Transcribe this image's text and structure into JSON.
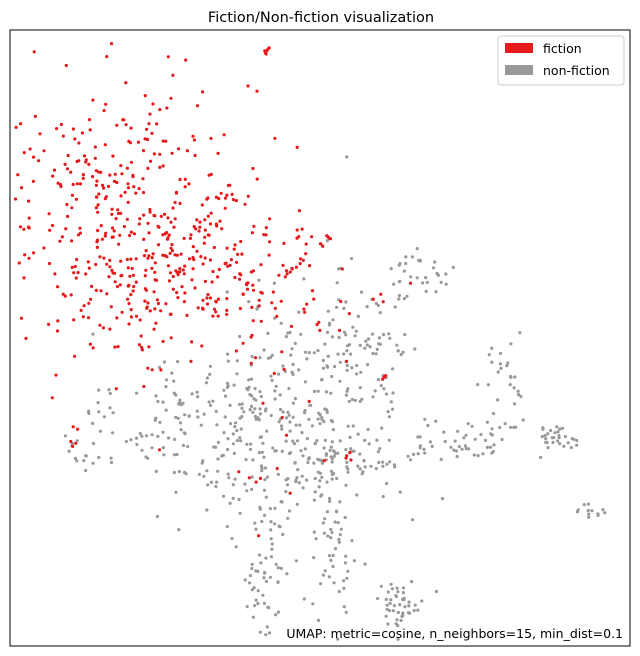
{
  "chart_data": {
    "type": "scatter",
    "title": "Fiction/Non-fiction visualization",
    "annotation": "UMAP: metric=cosine, n_neighbors=15, min_dist=0.1",
    "axes_visible": false,
    "grid": false,
    "legend_position": "top-right",
    "xlim": [
      0,
      100
    ],
    "ylim": [
      0,
      100
    ],
    "series": [
      {
        "name": "fiction",
        "color": "#e41a1c",
        "clusters": [
          {
            "cx": 18,
            "cy": 72,
            "sx": 11,
            "sy": 10,
            "n": 300
          },
          {
            "cx": 30,
            "cy": 63,
            "sx": 9,
            "sy": 6,
            "n": 130
          },
          {
            "cx": 20,
            "cy": 58,
            "sx": 7,
            "sy": 6,
            "n": 60
          },
          {
            "cx": 40,
            "cy": 57,
            "sx": 10,
            "sy": 6,
            "n": 45
          },
          {
            "cx": 30,
            "cy": 50,
            "sx": 12,
            "sy": 6,
            "n": 25
          }
        ],
        "points": [
          [
            41.2,
            96.3
          ],
          [
            41.4,
            96.6
          ],
          [
            41.6,
            96.9
          ],
          [
            41.8,
            97.1
          ],
          [
            41.3,
            96.1
          ],
          [
            41.1,
            96.6
          ],
          [
            51.3,
            66.4
          ],
          [
            51.5,
            66.2
          ],
          [
            51.1,
            66.6
          ],
          [
            51.7,
            66.1
          ],
          [
            53.6,
            61.2
          ],
          [
            47.3,
            62.6
          ],
          [
            46.8,
            62.1
          ],
          [
            46.2,
            61.5
          ],
          [
            45.5,
            61.2
          ],
          [
            45.2,
            60.7
          ],
          [
            44.7,
            60.4
          ],
          [
            64.6,
            58.9
          ],
          [
            59.8,
            57.1
          ],
          [
            58.6,
            56.3
          ],
          [
            60.2,
            55.9
          ],
          [
            39.6,
            46.8
          ],
          [
            38.9,
            45.9
          ],
          [
            44.2,
            44.9
          ],
          [
            60.3,
            43.6
          ],
          [
            60.1,
            43.3
          ],
          [
            60.6,
            43.9
          ],
          [
            10.2,
            35.6
          ],
          [
            10.9,
            35.2
          ],
          [
            9.8,
            33.2
          ],
          [
            10.6,
            32.9
          ],
          [
            10.1,
            32.4
          ],
          [
            45.2,
            24.8
          ],
          [
            39.7,
            26.6
          ],
          [
            40.4,
            27.2
          ],
          [
            38.6,
            27.3
          ],
          [
            54.3,
            30.9
          ],
          [
            54.2,
            30.5
          ],
          [
            55.0,
            30.2
          ],
          [
            54.8,
            31.4
          ],
          [
            40.1,
            17.9
          ],
          [
            36.9,
            28.3
          ],
          [
            44.6,
            34.2
          ],
          [
            43.1,
            28.8
          ],
          [
            50.7,
            30.1
          ],
          [
            40.8,
            39.4
          ],
          [
            43.9,
            37.1
          ]
        ]
      },
      {
        "name": "non-fiction",
        "color": "#999999",
        "clusters": [
          {
            "cx": 40,
            "cy": 37,
            "sx": 11,
            "sy": 7,
            "n": 260
          },
          {
            "cx": 50,
            "cy": 30,
            "sx": 9,
            "sy": 6,
            "n": 120
          },
          {
            "cx": 53,
            "cy": 48,
            "sx": 7,
            "sy": 6,
            "n": 70
          },
          {
            "cx": 41,
            "cy": 13,
            "sx": 2.2,
            "sy": 6,
            "n": 55
          },
          {
            "cx": 52,
            "cy": 14,
            "sx": 2,
            "sy": 6,
            "n": 45
          },
          {
            "cx": 63,
            "cy": 7,
            "sx": 2,
            "sy": 1.8,
            "n": 45
          },
          {
            "cx": 88,
            "cy": 34,
            "sx": 1.6,
            "sy": 0.9,
            "n": 30
          },
          {
            "cx": 80,
            "cy": 42,
            "sx": 1.6,
            "sy": 3.5,
            "n": 22
          },
          {
            "cx": 74,
            "cy": 33,
            "sx": 5,
            "sy": 2,
            "n": 40
          },
          {
            "cx": 66,
            "cy": 60,
            "sx": 2.5,
            "sy": 2,
            "n": 30
          },
          {
            "cx": 58,
            "cy": 50,
            "sx": 2,
            "sy": 2,
            "n": 20
          },
          {
            "cx": 94,
            "cy": 22,
            "sx": 1.2,
            "sy": 0.6,
            "n": 12
          },
          {
            "cx": 20,
            "cy": 35,
            "sx": 6,
            "sy": 4,
            "n": 25
          },
          {
            "cx": 11,
            "cy": 31,
            "sx": 1.0,
            "sy": 1.3,
            "n": 8
          }
        ],
        "points": [
          [
            51.2,
            65.8
          ],
          [
            50.3,
            65.1
          ],
          [
            53.4,
            61.3
          ],
          [
            55.1,
            62.9
          ],
          [
            66.2,
            62.5
          ],
          [
            68.3,
            61.4
          ],
          [
            69.1,
            60.2
          ],
          [
            58.4,
            56.3
          ],
          [
            57.6,
            55.1
          ],
          [
            56.2,
            53.5
          ],
          [
            62.8,
            56.9
          ],
          [
            63.4,
            47.7
          ],
          [
            63.1,
            47.3
          ],
          [
            62.6,
            47.9
          ],
          [
            77.3,
            47.3
          ],
          [
            79.1,
            45.8
          ],
          [
            80.8,
            43.6
          ],
          [
            81.3,
            41.9
          ],
          [
            82.4,
            40.5
          ],
          [
            66.9,
            36.8
          ],
          [
            67.4,
            35.8
          ],
          [
            70.2,
            33.2
          ],
          [
            68.1,
            32.4
          ],
          [
            66.2,
            32.5
          ],
          [
            65.1,
            31.1
          ],
          [
            64.2,
            30.8
          ],
          [
            60.8,
            29.5
          ],
          [
            56.9,
            28.3
          ],
          [
            54.2,
            26.1
          ],
          [
            53.2,
            23.4
          ],
          [
            51.2,
            21.8
          ],
          [
            25.2,
            38.3
          ],
          [
            24.2,
            36.3
          ],
          [
            22.9,
            34.3
          ],
          [
            16.3,
            30.5
          ],
          [
            14.3,
            30.6
          ],
          [
            12.2,
            30.9
          ],
          [
            11.9,
            30.1
          ],
          [
            27.9,
            39.4
          ],
          [
            30.2,
            41.2
          ],
          [
            24.9,
            46.1
          ],
          [
            26.1,
            44.3
          ],
          [
            36.3,
            27.1
          ],
          [
            35.2,
            27.9
          ],
          [
            41.2,
            28.9
          ],
          [
            38.2,
            25.2
          ],
          [
            46.1,
            26.7
          ],
          [
            40.3,
            22.5
          ],
          [
            42.1,
            20.2
          ],
          [
            54.3,
            79.4
          ],
          [
            59.1,
            55.6
          ],
          [
            59.4,
            55.3
          ],
          [
            49.8,
            37.8
          ],
          [
            61.2,
            37.2
          ],
          [
            73.9,
            36.1
          ]
        ]
      }
    ]
  }
}
